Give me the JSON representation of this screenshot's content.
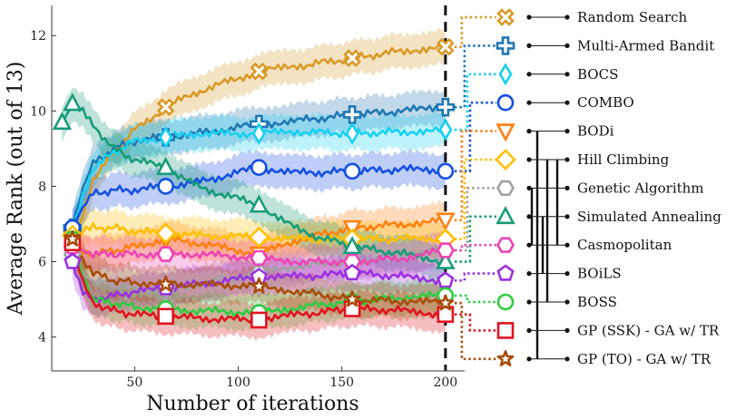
{
  "chart_data": {
    "type": "line",
    "title": "",
    "xlabel": "Number of iterations",
    "ylabel": "Average Rank (out of 13)",
    "xlim": [
      10,
      204
    ],
    "ylim": [
      3.1,
      12.8
    ],
    "xticks": [
      50,
      100,
      150,
      200
    ],
    "yticks": [
      4,
      6,
      8,
      10,
      12
    ],
    "grid": false,
    "vertical_marker_x": 200,
    "legend_position": "right",
    "series": [
      {
        "name": "Random Search",
        "color": "#d99a26",
        "marker": "x-thick",
        "x": [
          20,
          25,
          30,
          40,
          50,
          65,
          80,
          110,
          130,
          155,
          180,
          200
        ],
        "y": [
          6.3,
          7.3,
          8.2,
          8.9,
          9.5,
          10.1,
          10.5,
          11.05,
          11.2,
          11.4,
          11.6,
          11.7
        ]
      },
      {
        "name": "Multi-Armed Bandit",
        "color": "#1f77b4",
        "marker": "plus-thick",
        "x": [
          20,
          25,
          30,
          40,
          50,
          65,
          80,
          110,
          130,
          155,
          180,
          200
        ],
        "y": [
          6.9,
          7.9,
          8.6,
          9.0,
          9.2,
          9.3,
          9.4,
          9.65,
          9.75,
          9.9,
          10.0,
          10.1
        ]
      },
      {
        "name": "BOCS",
        "color": "#17d0f0",
        "marker": "diamond-thin",
        "x": [
          20,
          25,
          30,
          40,
          50,
          65,
          80,
          110,
          130,
          155,
          180,
          200
        ],
        "y": [
          6.8,
          7.8,
          8.5,
          8.9,
          9.2,
          9.3,
          9.4,
          9.4,
          9.45,
          9.4,
          9.45,
          9.5
        ]
      },
      {
        "name": "COMBO",
        "color": "#1550e0",
        "marker": "circle",
        "x": [
          20,
          25,
          30,
          40,
          50,
          65,
          80,
          110,
          130,
          155,
          180,
          200
        ],
        "y": [
          6.9,
          7.4,
          7.8,
          7.9,
          7.9,
          8.0,
          8.1,
          8.5,
          8.35,
          8.4,
          8.45,
          8.4
        ]
      },
      {
        "name": "BODi",
        "color": "#ff7f0e",
        "marker": "triangle-down",
        "x": [
          20,
          25,
          30,
          40,
          50,
          65,
          80,
          110,
          130,
          155,
          180,
          200
        ],
        "y": [
          6.6,
          6.3,
          6.2,
          6.3,
          6.4,
          6.6,
          6.5,
          6.2,
          6.6,
          6.9,
          7.0,
          7.1
        ]
      },
      {
        "name": "Hill Climbing",
        "color": "#ffbf00",
        "marker": "diamond",
        "x": [
          20,
          25,
          30,
          40,
          50,
          65,
          80,
          110,
          130,
          155,
          180,
          200
        ],
        "y": [
          6.7,
          6.8,
          6.9,
          6.9,
          6.8,
          6.75,
          6.7,
          6.65,
          6.6,
          6.6,
          6.6,
          6.6
        ]
      },
      {
        "name": "Genetic Algorithm",
        "color": "#a0a0a0",
        "marker": "hexagon",
        "x": [
          20,
          25,
          30,
          40,
          50,
          65,
          80,
          110,
          130,
          155,
          180,
          200
        ],
        "y": [
          6.2,
          5.7,
          5.5,
          5.4,
          5.3,
          5.25,
          5.4,
          5.7,
          5.9,
          6.0,
          6.2,
          6.3
        ]
      },
      {
        "name": "Simulated Annealing",
        "color": "#179c7a",
        "marker": "triangle-up",
        "x": [
          15,
          20,
          25,
          30,
          40,
          50,
          65,
          80,
          110,
          130,
          155,
          180,
          200
        ],
        "y": [
          9.7,
          10.2,
          10.0,
          9.6,
          9.0,
          8.7,
          8.5,
          8.0,
          7.5,
          6.8,
          6.4,
          6.2,
          6.0
        ]
      },
      {
        "name": "Casmopolitan",
        "color": "#ee44b4",
        "marker": "hexagon",
        "x": [
          20,
          25,
          30,
          40,
          50,
          65,
          80,
          110,
          130,
          155,
          180,
          200
        ],
        "y": [
          6.4,
          6.3,
          6.2,
          6.2,
          6.2,
          6.2,
          6.2,
          6.1,
          6.0,
          6.0,
          6.1,
          6.3
        ]
      },
      {
        "name": "BOiLS",
        "color": "#9b30e0",
        "marker": "pentagon",
        "x": [
          20,
          25,
          30,
          40,
          50,
          65,
          80,
          110,
          130,
          155,
          180,
          200
        ],
        "y": [
          6.0,
          5.2,
          5.0,
          5.1,
          5.2,
          5.3,
          5.4,
          5.6,
          5.6,
          5.7,
          5.6,
          5.5
        ]
      },
      {
        "name": "BOSS",
        "color": "#2ecc40",
        "marker": "circle",
        "x": [
          20,
          25,
          30,
          40,
          50,
          65,
          80,
          110,
          130,
          155,
          180,
          200
        ],
        "y": [
          6.6,
          5.6,
          5.0,
          4.9,
          4.8,
          4.75,
          4.7,
          4.65,
          4.8,
          4.95,
          5.05,
          5.1
        ]
      },
      {
        "name": "GP (SSK) - GA w/ TR",
        "color": "#e0141e",
        "marker": "square",
        "x": [
          20,
          25,
          30,
          40,
          50,
          65,
          80,
          110,
          130,
          155,
          180,
          200
        ],
        "y": [
          6.5,
          5.5,
          4.9,
          4.7,
          4.6,
          4.55,
          4.5,
          4.45,
          4.6,
          4.75,
          4.7,
          4.6
        ]
      },
      {
        "name": "GP (TO) - GA w/ TR",
        "color": "#a84d0a",
        "marker": "star",
        "x": [
          20,
          25,
          30,
          40,
          50,
          65,
          80,
          110,
          130,
          155,
          180,
          200
        ],
        "y": [
          6.6,
          6.0,
          5.7,
          5.5,
          5.45,
          5.4,
          5.4,
          5.35,
          5.2,
          5.0,
          4.95,
          4.9
        ]
      }
    ]
  }
}
